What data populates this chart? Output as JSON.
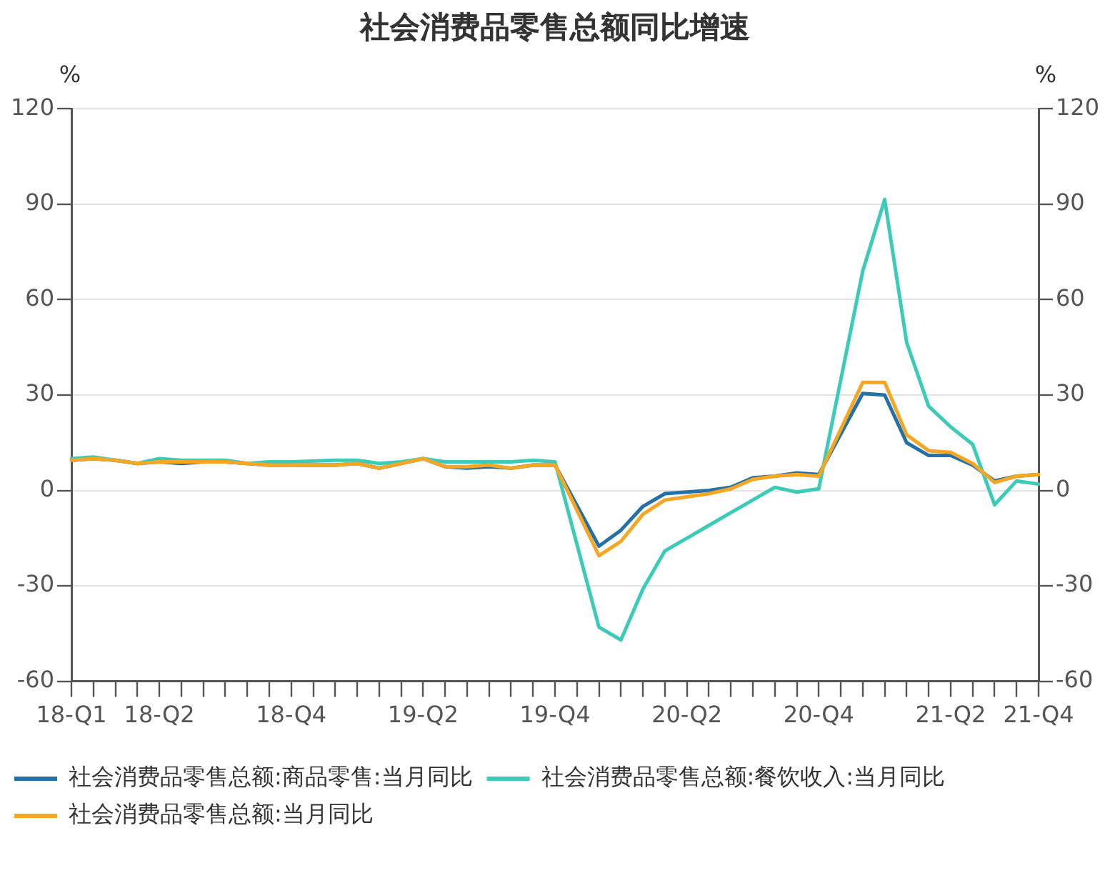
{
  "chart_data": {
    "type": "line",
    "title": "社会消费品零售总额同比增速",
    "ylabel": "%",
    "y2label": "%",
    "categories": [
      "18-Q1",
      null,
      null,
      null,
      "18-Q2",
      null,
      null,
      null,
      null,
      null,
      "18-Q4",
      null,
      null,
      null,
      null,
      null,
      "19-Q2",
      null,
      null,
      null,
      null,
      null,
      "19-Q4",
      null,
      null,
      null,
      null,
      null,
      "20-Q2",
      null,
      null,
      null,
      null,
      null,
      "20-Q4",
      null,
      null,
      null,
      null,
      null,
      "21-Q2",
      null,
      null,
      null,
      "21-Q4"
    ],
    "series": [
      {
        "name": "社会消费品零售总额:商品零售:当月同比",
        "color": "#2371a6",
        "values": [
          9.5,
          10,
          9.5,
          8.5,
          9,
          8.5,
          9,
          9,
          8.5,
          8,
          8,
          null,
          8,
          8.5,
          7,
          8.5,
          10,
          7.5,
          7,
          7.5,
          7,
          8,
          8,
          null,
          -17.5,
          -12.5,
          -5,
          -1,
          -0.5,
          0,
          1,
          4,
          4.5,
          5.5,
          5,
          null,
          30.5,
          30,
          15,
          11,
          11,
          8,
          3,
          4.5,
          5
        ]
      },
      {
        "name": "社会消费品零售总额:餐饮收入:当月同比",
        "color": "#3ccbb9",
        "values": [
          10,
          10.5,
          9.5,
          8.5,
          10,
          9.5,
          9.5,
          9.5,
          8.5,
          9,
          9,
          null,
          9.5,
          9.5,
          8.5,
          9,
          10,
          9,
          9,
          9,
          9,
          9.5,
          9,
          null,
          -43,
          -47,
          -31,
          -19,
          -15,
          -11,
          -7,
          -3,
          1,
          -0.5,
          0.5,
          null,
          69,
          91.5,
          46.5,
          26.5,
          20,
          14.5,
          -4.5,
          3,
          2
        ]
      },
      {
        "name": "社会消费品零售总额:当月同比",
        "color": "#f5a623",
        "values": [
          9.5,
          10,
          9.5,
          8.5,
          9,
          9,
          9,
          9,
          8.5,
          8,
          8,
          null,
          8,
          8.5,
          7,
          8.5,
          10,
          7.5,
          7.5,
          8,
          7,
          8,
          8,
          null,
          -20.5,
          -16,
          -7.5,
          -3,
          -2,
          -1,
          0.5,
          3.5,
          4.5,
          5,
          4.5,
          null,
          34,
          34,
          17.5,
          12.5,
          12,
          8.5,
          2.5,
          4.5,
          5
        ]
      }
    ],
    "ylim": [
      -60,
      120
    ],
    "yticks": [
      -60,
      -30,
      0,
      30,
      60,
      90,
      120
    ],
    "y2lim": [
      -60,
      120
    ],
    "y2ticks": [
      -60,
      -30,
      0,
      30,
      60,
      90,
      120
    ],
    "grid": "y",
    "legend": "bottom",
    "marker": "none"
  }
}
